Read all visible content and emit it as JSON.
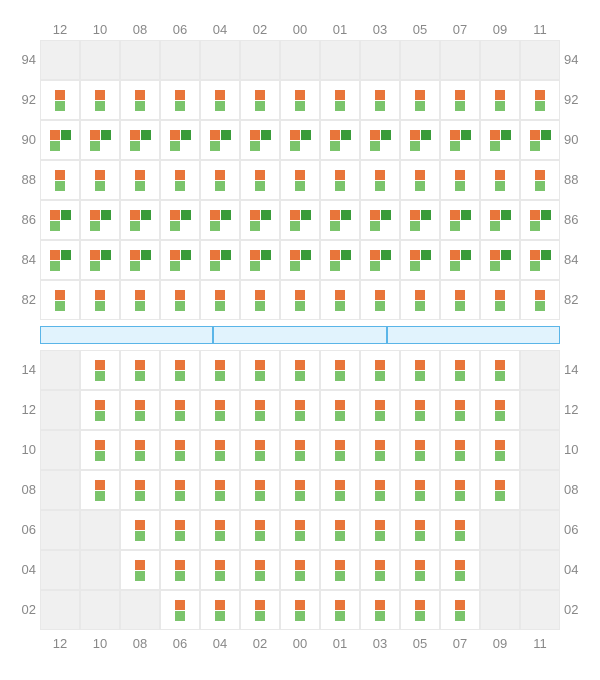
{
  "colors": {
    "orange": "#e8753a",
    "green": "#7bc46c",
    "darkgreen": "#3a9b3a",
    "empty_bg": "#f0f0f0",
    "filled_bg": "#ffffff",
    "grid_border": "#e8e8e8",
    "stage_fill": "#e1f3fd",
    "stage_border": "#5ab5e8",
    "label_color": "#888888"
  },
  "layout": {
    "cell_size": 40,
    "square_size": 10,
    "label_fontsize": 13
  },
  "x_axis": [
    "12",
    "10",
    "08",
    "06",
    "04",
    "02",
    "00",
    "01",
    "03",
    "05",
    "07",
    "09",
    "11"
  ],
  "upper": {
    "y_axis": [
      "94",
      "92",
      "90",
      "88",
      "86",
      "84",
      "82"
    ],
    "rows": [
      {
        "y": "94",
        "cells": [
          null,
          null,
          null,
          null,
          null,
          null,
          null,
          null,
          null,
          null,
          null,
          null,
          null
        ]
      },
      {
        "y": "92",
        "cells": [
          [
            "o",
            "g"
          ],
          [
            "o",
            "g"
          ],
          [
            "o",
            "g"
          ],
          [
            "o",
            "g"
          ],
          [
            "o",
            "g"
          ],
          [
            "o",
            "g"
          ],
          [
            "o",
            "g"
          ],
          [
            "o",
            "g"
          ],
          [
            "o",
            "g"
          ],
          [
            "o",
            "g"
          ],
          [
            "o",
            "g"
          ],
          [
            "o",
            "g"
          ],
          [
            "o",
            "g"
          ]
        ]
      },
      {
        "y": "90",
        "cells": [
          [
            "o",
            "d",
            "g"
          ],
          [
            "o",
            "d",
            "g"
          ],
          [
            "o",
            "d",
            "g"
          ],
          [
            "o",
            "d",
            "g"
          ],
          [
            "o",
            "d",
            "g"
          ],
          [
            "o",
            "d",
            "g"
          ],
          [
            "o",
            "d",
            "g"
          ],
          [
            "o",
            "d",
            "g"
          ],
          [
            "o",
            "d",
            "g"
          ],
          [
            "o",
            "d",
            "g"
          ],
          [
            "o",
            "d",
            "g"
          ],
          [
            "o",
            "d",
            "g"
          ],
          [
            "o",
            "d",
            "g"
          ]
        ]
      },
      {
        "y": "88",
        "cells": [
          [
            "o",
            "g"
          ],
          [
            "o",
            "g"
          ],
          [
            "o",
            "g"
          ],
          [
            "o",
            "g"
          ],
          [
            "o",
            "g"
          ],
          [
            "o",
            "g"
          ],
          [
            "o",
            "g"
          ],
          [
            "o",
            "g"
          ],
          [
            "o",
            "g"
          ],
          [
            "o",
            "g"
          ],
          [
            "o",
            "g"
          ],
          [
            "o",
            "g"
          ],
          [
            "o",
            "g"
          ]
        ]
      },
      {
        "y": "86",
        "cells": [
          [
            "o",
            "d",
            "g"
          ],
          [
            "o",
            "d",
            "g"
          ],
          [
            "o",
            "d",
            "g"
          ],
          [
            "o",
            "d",
            "g"
          ],
          [
            "o",
            "d",
            "g"
          ],
          [
            "o",
            "d",
            "g"
          ],
          [
            "o",
            "d",
            "g"
          ],
          [
            "o",
            "d",
            "g"
          ],
          [
            "o",
            "d",
            "g"
          ],
          [
            "o",
            "d",
            "g"
          ],
          [
            "o",
            "d",
            "g"
          ],
          [
            "o",
            "d",
            "g"
          ],
          [
            "o",
            "d",
            "g"
          ]
        ]
      },
      {
        "y": "84",
        "cells": [
          [
            "o",
            "d",
            "g"
          ],
          [
            "o",
            "d",
            "g"
          ],
          [
            "o",
            "d",
            "g"
          ],
          [
            "o",
            "d",
            "g"
          ],
          [
            "o",
            "d",
            "g"
          ],
          [
            "o",
            "d",
            "g"
          ],
          [
            "o",
            "d",
            "g"
          ],
          [
            "o",
            "d",
            "g"
          ],
          [
            "o",
            "d",
            "g"
          ],
          [
            "o",
            "d",
            "g"
          ],
          [
            "o",
            "d",
            "g"
          ],
          [
            "o",
            "d",
            "g"
          ],
          [
            "o",
            "d",
            "g"
          ]
        ]
      },
      {
        "y": "82",
        "cells": [
          [
            "o",
            "g"
          ],
          [
            "o",
            "g"
          ],
          [
            "o",
            "g"
          ],
          [
            "o",
            "g"
          ],
          [
            "o",
            "g"
          ],
          [
            "o",
            "g"
          ],
          [
            "o",
            "g"
          ],
          [
            "o",
            "g"
          ],
          [
            "o",
            "g"
          ],
          [
            "o",
            "g"
          ],
          [
            "o",
            "g"
          ],
          [
            "o",
            "g"
          ],
          [
            "o",
            "g"
          ]
        ]
      }
    ]
  },
  "stage_segments": 3,
  "lower": {
    "y_axis": [
      "14",
      "12",
      "10",
      "08",
      "06",
      "04",
      "02"
    ],
    "rows": [
      {
        "y": "14",
        "cells": [
          null,
          [
            "o",
            "g"
          ],
          [
            "o",
            "g"
          ],
          [
            "o",
            "g"
          ],
          [
            "o",
            "g"
          ],
          [
            "o",
            "g"
          ],
          [
            "o",
            "g"
          ],
          [
            "o",
            "g"
          ],
          [
            "o",
            "g"
          ],
          [
            "o",
            "g"
          ],
          [
            "o",
            "g"
          ],
          [
            "o",
            "g"
          ],
          null
        ]
      },
      {
        "y": "12",
        "cells": [
          null,
          [
            "o",
            "g"
          ],
          [
            "o",
            "g"
          ],
          [
            "o",
            "g"
          ],
          [
            "o",
            "g"
          ],
          [
            "o",
            "g"
          ],
          [
            "o",
            "g"
          ],
          [
            "o",
            "g"
          ],
          [
            "o",
            "g"
          ],
          [
            "o",
            "g"
          ],
          [
            "o",
            "g"
          ],
          [
            "o",
            "g"
          ],
          null
        ]
      },
      {
        "y": "10",
        "cells": [
          null,
          [
            "o",
            "g"
          ],
          [
            "o",
            "g"
          ],
          [
            "o",
            "g"
          ],
          [
            "o",
            "g"
          ],
          [
            "o",
            "g"
          ],
          [
            "o",
            "g"
          ],
          [
            "o",
            "g"
          ],
          [
            "o",
            "g"
          ],
          [
            "o",
            "g"
          ],
          [
            "o",
            "g"
          ],
          [
            "o",
            "g"
          ],
          null
        ]
      },
      {
        "y": "08",
        "cells": [
          null,
          [
            "o",
            "g"
          ],
          [
            "o",
            "g"
          ],
          [
            "o",
            "g"
          ],
          [
            "o",
            "g"
          ],
          [
            "o",
            "g"
          ],
          [
            "o",
            "g"
          ],
          [
            "o",
            "g"
          ],
          [
            "o",
            "g"
          ],
          [
            "o",
            "g"
          ],
          [
            "o",
            "g"
          ],
          [
            "o",
            "g"
          ],
          null
        ]
      },
      {
        "y": "06",
        "cells": [
          null,
          null,
          [
            "o",
            "g"
          ],
          [
            "o",
            "g"
          ],
          [
            "o",
            "g"
          ],
          [
            "o",
            "g"
          ],
          [
            "o",
            "g"
          ],
          [
            "o",
            "g"
          ],
          [
            "o",
            "g"
          ],
          [
            "o",
            "g"
          ],
          [
            "o",
            "g"
          ],
          null,
          null
        ]
      },
      {
        "y": "04",
        "cells": [
          null,
          null,
          [
            "o",
            "g"
          ],
          [
            "o",
            "g"
          ],
          [
            "o",
            "g"
          ],
          [
            "o",
            "g"
          ],
          [
            "o",
            "g"
          ],
          [
            "o",
            "g"
          ],
          [
            "o",
            "g"
          ],
          [
            "o",
            "g"
          ],
          [
            "o",
            "g"
          ],
          null,
          null
        ]
      },
      {
        "y": "02",
        "cells": [
          null,
          null,
          null,
          [
            "o",
            "g"
          ],
          [
            "o",
            "g"
          ],
          [
            "o",
            "g"
          ],
          [
            "o",
            "g"
          ],
          [
            "o",
            "g"
          ],
          [
            "o",
            "g"
          ],
          [
            "o",
            "g"
          ],
          [
            "o",
            "g"
          ],
          null,
          null
        ]
      }
    ]
  }
}
